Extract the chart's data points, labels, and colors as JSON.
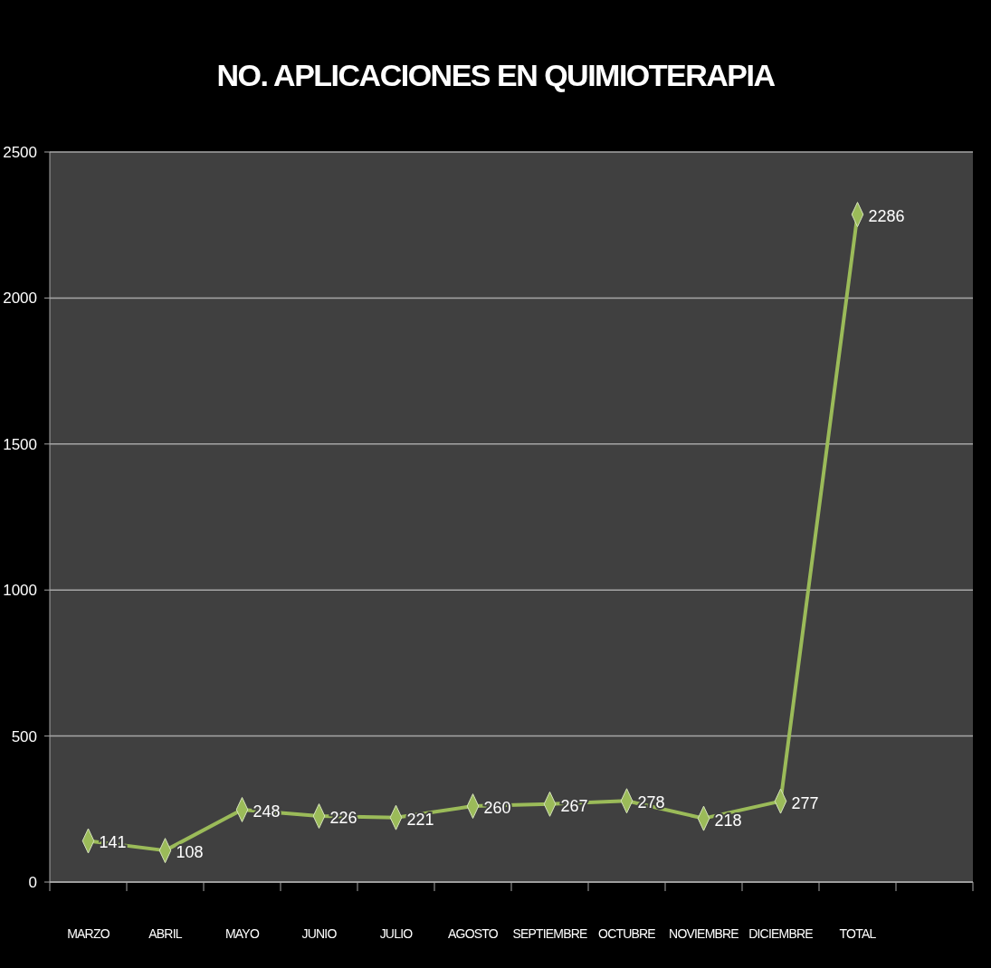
{
  "chart_data": {
    "type": "line",
    "title": "NO. APLICACIONES EN QUIMIOTERAPIA",
    "categories": [
      "MARZO",
      "ABRIL",
      "MAYO",
      "JUNIO",
      "JULIO",
      "AGOSTO",
      "SEPTIEMBRE",
      "OCTUBRE",
      "NOVIEMBRE",
      "DICIEMBRE",
      "TOTAL",
      null
    ],
    "series": [
      {
        "color": "#9bbb59",
        "values": [
          141,
          108,
          248,
          226,
          221,
          260,
          267,
          278,
          218,
          277,
          2286,
          null
        ]
      }
    ],
    "ylim": [
      0,
      2500
    ],
    "yticks": [
      0,
      500,
      1000,
      1500,
      2000,
      2500
    ],
    "grid": "y",
    "marker": "diamond",
    "line_style": "solid",
    "data_labels": true
  }
}
